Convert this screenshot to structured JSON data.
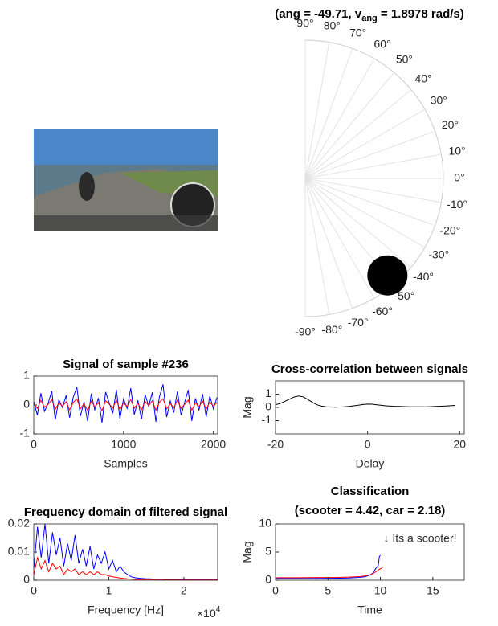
{
  "chart_data": [
    {
      "type": "polar",
      "title_prefix": "(ang = -49.71, v",
      "title_sub": "ang",
      "title_suffix": " = 1.8978 rad/s)",
      "angle": -49.71,
      "color": "#000000",
      "angle_ticks": [
        {
          "value": 90,
          "label": "90°"
        },
        {
          "value": 80,
          "label": "80°"
        },
        {
          "value": 70,
          "label": "70°"
        },
        {
          "value": 60,
          "label": "60°"
        },
        {
          "value": 50,
          "label": "50°"
        },
        {
          "value": 40,
          "label": "40°"
        },
        {
          "value": 30,
          "label": "30°"
        },
        {
          "value": 20,
          "label": "20°"
        },
        {
          "value": 10,
          "label": "10°"
        },
        {
          "value": 0,
          "label": "0°"
        },
        {
          "value": -10,
          "label": "-10°"
        },
        {
          "value": -20,
          "label": "-20°"
        },
        {
          "value": -30,
          "label": "-30°"
        },
        {
          "value": -40,
          "label": "-40°"
        },
        {
          "value": -50,
          "label": "-50°"
        },
        {
          "value": -60,
          "label": "-60°"
        },
        {
          "value": -70,
          "label": "-70°"
        },
        {
          "value": -80,
          "label": "-80°"
        },
        {
          "value": -90,
          "label": "-90°"
        }
      ]
    },
    {
      "type": "line",
      "title": "Signal of sample #236",
      "x_label": "Samples",
      "xlim": [
        0,
        2048
      ],
      "xticks": [
        0,
        1000,
        2000
      ],
      "ylim": [
        -1,
        1
      ],
      "yticks": [
        -1,
        0,
        1
      ],
      "x": [
        0,
        40,
        80,
        120,
        160,
        200,
        240,
        280,
        320,
        360,
        400,
        440,
        480,
        520,
        560,
        600,
        640,
        680,
        720,
        760,
        800,
        840,
        880,
        920,
        960,
        1000,
        1040,
        1080,
        1120,
        1160,
        1200,
        1240,
        1280,
        1320,
        1360,
        1400,
        1440,
        1480,
        1520,
        1560,
        1600,
        1640,
        1680,
        1720,
        1760,
        1800,
        1840,
        1880,
        1920,
        1960,
        2000,
        2040
      ],
      "series": [
        {
          "color": "#0000ff",
          "values": [
            0.12,
            -0.35,
            0.41,
            -0.22,
            0.05,
            0.48,
            -0.51,
            0.18,
            -0.09,
            0.33,
            -0.44,
            0.27,
            0.62,
            -0.38,
            0.11,
            -0.56,
            0.39,
            -0.17,
            0.24,
            -0.61,
            0.45,
            0.08,
            -0.29,
            0.53,
            -0.47,
            0.21,
            -0.12,
            0.58,
            -0.33,
            0.16,
            -0.49,
            0.36,
            -0.05,
            0.44,
            -0.58,
            0.29,
            0.71,
            -0.42,
            0.14,
            -0.26,
            0.47,
            -0.35,
            0.09,
            0.52,
            -0.55,
            0.23,
            -0.18,
            0.38,
            -0.41,
            0.31,
            -0.13,
            0.26
          ]
        },
        {
          "color": "#ff0000",
          "values": [
            0.05,
            -0.12,
            0.16,
            -0.08,
            0.02,
            0.18,
            -0.15,
            0.07,
            -0.04,
            0.11,
            -0.17,
            0.09,
            0.21,
            -0.13,
            0.04,
            -0.19,
            0.14,
            -0.06,
            0.08,
            -0.2,
            0.15,
            0.03,
            -0.1,
            0.17,
            -0.16,
            0.07,
            -0.05,
            0.19,
            -0.11,
            0.06,
            -0.16,
            0.12,
            -0.02,
            0.15,
            -0.18,
            0.1,
            0.22,
            -0.14,
            0.05,
            -0.09,
            0.16,
            -0.12,
            0.03,
            0.17,
            -0.18,
            0.08,
            -0.06,
            0.13,
            -0.14,
            0.1,
            -0.04,
            0.09
          ]
        }
      ]
    },
    {
      "type": "line",
      "title": "Cross-correlation between signals",
      "x_label": "Delay",
      "y_label": "Mag",
      "xlim": [
        -20,
        21
      ],
      "xticks": [
        -20,
        0,
        20
      ],
      "ylim": [
        -2,
        2
      ],
      "yticks": [
        -1,
        0,
        1
      ],
      "x": [
        -20,
        -19,
        -18,
        -17,
        -16,
        -15,
        -14,
        -13,
        -12,
        -11,
        -10,
        -9,
        -8,
        -7,
        -6,
        -5,
        -4,
        -3,
        -2,
        -1,
        0,
        1,
        2,
        3,
        4,
        5,
        6,
        7,
        8,
        9,
        10,
        11,
        12,
        13,
        14,
        15,
        16,
        17,
        18,
        19
      ],
      "series": [
        {
          "color": "#000000",
          "values": [
            0.2,
            0.3,
            0.45,
            0.62,
            0.78,
            0.86,
            0.8,
            0.6,
            0.38,
            0.2,
            0.1,
            0.05,
            0.03,
            0.02,
            0.03,
            0.05,
            0.08,
            0.12,
            0.17,
            0.22,
            0.25,
            0.24,
            0.2,
            0.16,
            0.12,
            0.1,
            0.08,
            0.07,
            0.06,
            0.05,
            0.05,
            0.04,
            0.04,
            0.05,
            0.06,
            0.07,
            0.09,
            0.11,
            0.13,
            0.15
          ]
        }
      ]
    },
    {
      "type": "line",
      "title": "Frequency domain of filtered signal",
      "x_label": "Frequency [Hz]",
      "x_multiplier": {
        "base": "×10",
        "exponent": "4"
      },
      "xlim": [
        0,
        2.45
      ],
      "xticks": [
        0,
        1,
        2
      ],
      "ylim": [
        0,
        0.02
      ],
      "yticks": [
        0,
        0.01,
        0.02
      ],
      "x": [
        0,
        0.05,
        0.1,
        0.15,
        0.2,
        0.25,
        0.3,
        0.35,
        0.4,
        0.45,
        0.5,
        0.55,
        0.6,
        0.65,
        0.7,
        0.75,
        0.8,
        0.85,
        0.9,
        0.95,
        1,
        1.05,
        1.1,
        1.15,
        1.2,
        1.25,
        1.3,
        1.35,
        1.4,
        1.45,
        1.5,
        1.55,
        1.6,
        1.65,
        1.7,
        1.75,
        1.8,
        1.85,
        1.9,
        1.95,
        2,
        2.05,
        2.1,
        2.15,
        2.2,
        2.25,
        2.3,
        2.35,
        2.4,
        2.45
      ],
      "series": [
        {
          "color": "#0000ff",
          "values": [
            0.004,
            0.019,
            0.008,
            0.02,
            0.006,
            0.017,
            0.009,
            0.015,
            0.005,
            0.013,
            0.007,
            0.016,
            0.006,
            0.011,
            0.005,
            0.012,
            0.004,
            0.009,
            0.006,
            0.01,
            0.004,
            0.007,
            0.003,
            0.005,
            0.003,
            0.002,
            0.0012,
            0.0009,
            0.0007,
            0.0006,
            0.0005,
            0.0005,
            0.0004,
            0.0004,
            0.0004,
            0.0003,
            0.0003,
            0.0003,
            0.0003,
            0.0003,
            0.0002,
            0.0002,
            0.0002,
            0.0002,
            0.0002,
            0.0002,
            0.0002,
            0.0002,
            0.0002,
            0.0002
          ]
        },
        {
          "color": "#ff0000",
          "values": [
            0.002,
            0.008,
            0.004,
            0.007,
            0.003,
            0.006,
            0.004,
            0.005,
            0.002,
            0.004,
            0.003,
            0.004,
            0.002,
            0.003,
            0.002,
            0.003,
            0.002,
            0.003,
            0.002,
            0.002,
            0.0015,
            0.0012,
            0.001,
            0.0008,
            0.0006,
            0.0005,
            0.0004,
            0.0003,
            0.0003,
            0.0002,
            0.0002,
            0.0002,
            0.0002,
            0.0001,
            0.0001,
            0.0001,
            0.0001,
            0.0001,
            0.0001,
            0.0001,
            0.0001,
            0.0001,
            0.0001,
            0.0001,
            0.0001,
            0.0001,
            0.0001,
            0.0001,
            0.0001,
            0.0001
          ]
        }
      ]
    },
    {
      "type": "line",
      "title": "Classification",
      "subtitle": "(scooter = 4.42, car = 2.18)",
      "x_label": "Time",
      "y_label": "Mag",
      "annotation": "↓ Its a scooter!",
      "xlim": [
        0,
        18
      ],
      "xticks": [
        0,
        5,
        10,
        15
      ],
      "ylim": [
        0,
        10
      ],
      "yticks": [
        0,
        5,
        10
      ],
      "series": [
        {
          "color": "#0000ff",
          "x": [
            0,
            2,
            4,
            6,
            7,
            8,
            8.5,
            9,
            9.3,
            9.6,
            9.8,
            9.9,
            10
          ],
          "values": [
            0.3,
            0.3,
            0.32,
            0.35,
            0.4,
            0.5,
            0.6,
            0.9,
            1.3,
            2.2,
            2.6,
            4.2,
            4.42
          ]
        },
        {
          "color": "#ff0000",
          "x": [
            0,
            2,
            4,
            6,
            7,
            8,
            8.5,
            9,
            9.4,
            9.8,
            10,
            10.2
          ],
          "values": [
            0.45,
            0.45,
            0.48,
            0.5,
            0.55,
            0.65,
            0.75,
            0.95,
            1.3,
            1.8,
            2.05,
            2.18
          ]
        }
      ]
    }
  ]
}
